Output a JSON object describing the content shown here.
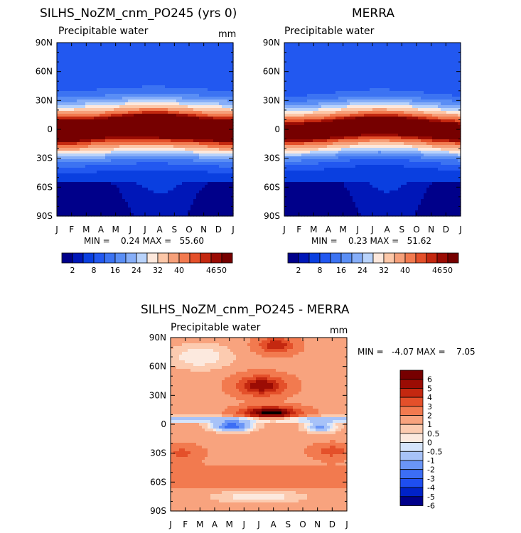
{
  "figure": {
    "months": [
      "J",
      "F",
      "M",
      "A",
      "M",
      "J",
      "J",
      "A",
      "S",
      "O",
      "N",
      "D",
      "J"
    ],
    "lat_labels": [
      "90N",
      "60N",
      "30N",
      "0",
      "30S",
      "60S",
      "90S"
    ]
  },
  "chart_data": [
    {
      "type": "heatmap",
      "id": "model",
      "title": "SILHS_NoZM_cnm_PO245 (yrs 0)",
      "variable": "Precipitable water",
      "units": "mm",
      "xlabel": "",
      "ylabel": "",
      "y_range": [
        -90,
        90
      ],
      "stats_text": "MIN =    0.24 MAX =   55.60",
      "min": 0.24,
      "max": 55.6,
      "colorbar": {
        "levels": [
          2,
          4,
          8,
          12,
          16,
          20,
          24,
          28,
          32,
          36,
          40,
          44,
          46,
          48,
          50
        ],
        "labels": [
          "2",
          "8",
          "16",
          "24",
          "32",
          "40",
          "46",
          "50"
        ],
        "orientation": "horizontal"
      }
    },
    {
      "type": "heatmap",
      "id": "obs",
      "title": "MERRA",
      "variable": "Precipitable water",
      "units": "",
      "xlabel": "",
      "ylabel": "",
      "y_range": [
        -90,
        90
      ],
      "stats_text": "MIN =    0.23 MAX =   51.62",
      "min": 0.23,
      "max": 51.62,
      "colorbar": {
        "levels": [
          2,
          4,
          8,
          12,
          16,
          20,
          24,
          28,
          32,
          36,
          40,
          44,
          46,
          48,
          50
        ],
        "labels": [
          "2",
          "8",
          "16",
          "24",
          "32",
          "40",
          "46",
          "50"
        ],
        "orientation": "horizontal"
      }
    },
    {
      "type": "heatmap",
      "id": "diff",
      "title": "SILHS_NoZM_cnm_PO245 - MERRA",
      "variable": "Precipitable water",
      "units": "mm",
      "xlabel": "",
      "ylabel": "",
      "y_range": [
        -90,
        90
      ],
      "stats_text": "MIN =   -4.07 MAX =    7.05",
      "min": -4.07,
      "max": 7.05,
      "colorbar": {
        "levels": [
          -6,
          -5,
          -4,
          -3,
          -2,
          -1,
          -0.5,
          0,
          0.5,
          1,
          2,
          3,
          4,
          5,
          6
        ],
        "labels": [
          "6",
          "5",
          "4",
          "3",
          "2",
          "1",
          "0.5",
          "0",
          "-0.5",
          "-1",
          "-2",
          "-3",
          "-4",
          "-5",
          "-6"
        ],
        "orientation": "vertical"
      }
    }
  ],
  "colors": {
    "pw_scale": [
      "#00008a",
      "#0017b8",
      "#0a3fe0",
      "#2258f0",
      "#3c73f2",
      "#5a8ef5",
      "#86aef8",
      "#b9d3fb",
      "#fde8dc",
      "#fcc7a8",
      "#f6a07a",
      "#f27a4f",
      "#e4502a",
      "#c42810",
      "#9b0c04",
      "#760000"
    ],
    "diff_scale": [
      "#00008a",
      "#0022c8",
      "#1e4ef0",
      "#3c6ef5",
      "#6a95f7",
      "#a7c2f8",
      "#d5e4fb",
      "#fce9de",
      "#fccbb0",
      "#f8a37e",
      "#f27a4f",
      "#e4502a",
      "#c42810",
      "#9b0c04",
      "#760000"
    ]
  }
}
